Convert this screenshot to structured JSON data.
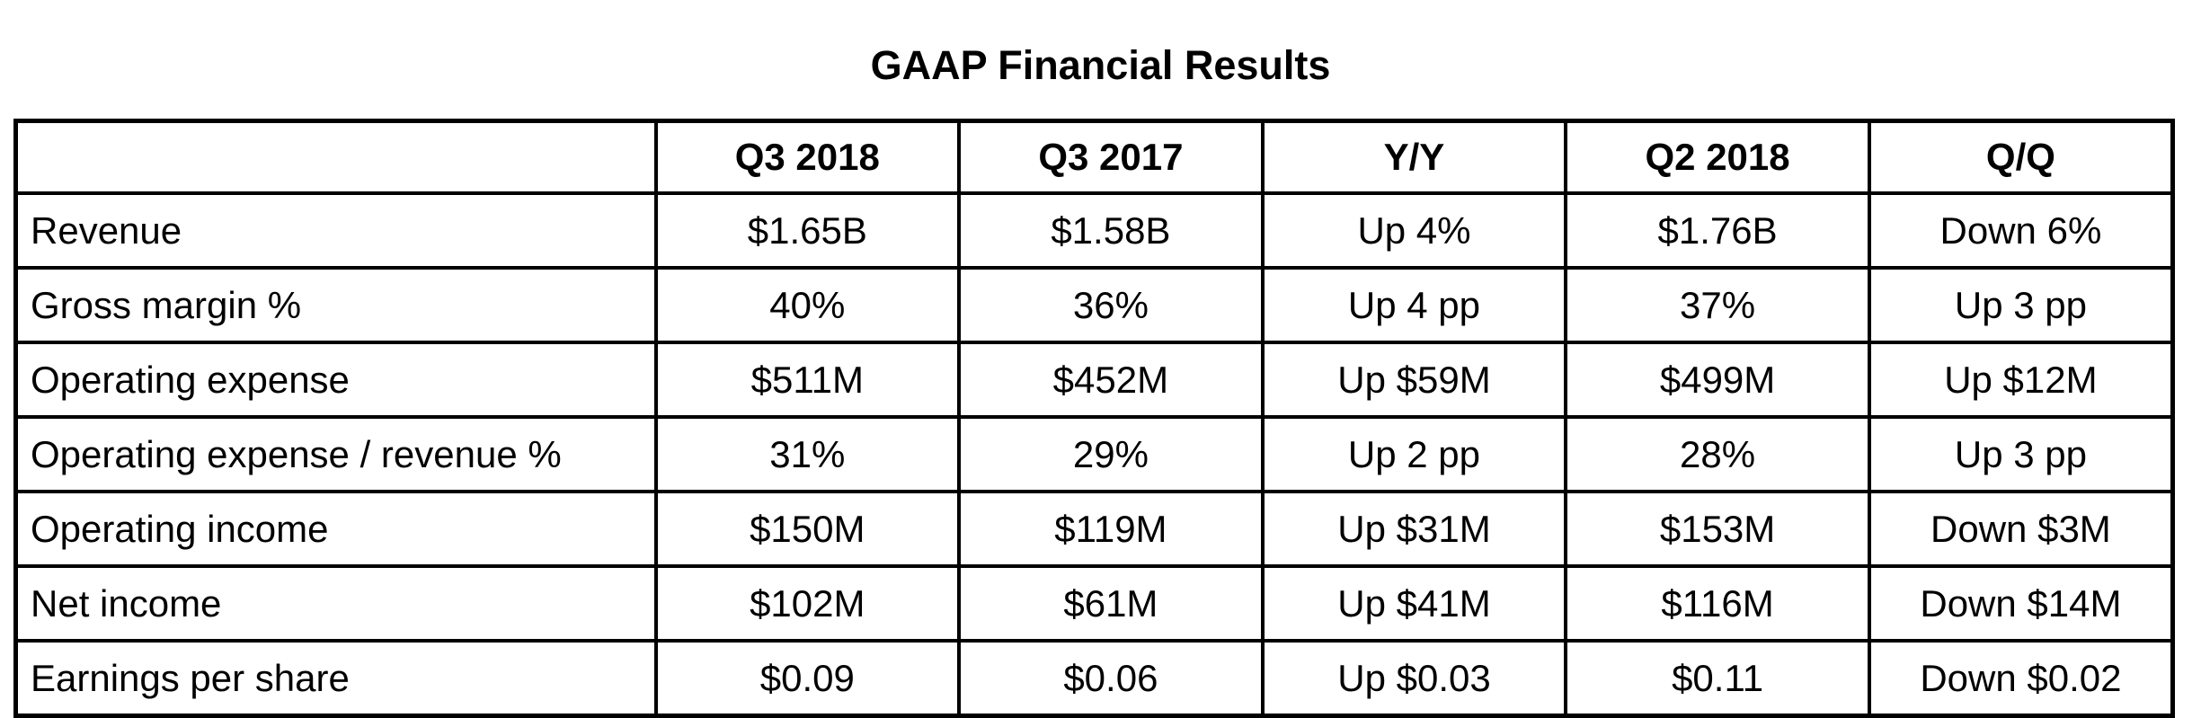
{
  "title": "GAAP Financial Results",
  "columns": [
    "",
    "Q3 2018",
    "Q3 2017",
    "Y/Y",
    "Q2 2018",
    "Q/Q"
  ],
  "rows": [
    {
      "metric": "Revenue",
      "cells": [
        "$1.65B",
        "$1.58B",
        "Up 4%",
        "$1.76B",
        "Down 6%"
      ]
    },
    {
      "metric": "Gross margin %",
      "cells": [
        "40%",
        "36%",
        "Up 4 pp",
        "37%",
        "Up 3 pp"
      ]
    },
    {
      "metric": "Operating expense",
      "cells": [
        "$511M",
        "$452M",
        "Up $59M",
        "$499M",
        "Up $12M"
      ]
    },
    {
      "metric": "Operating expense / revenue %",
      "cells": [
        "31%",
        "29%",
        "Up 2 pp",
        "28%",
        "Up 3 pp"
      ]
    },
    {
      "metric": "Operating income",
      "cells": [
        "$150M",
        "$119M",
        "Up $31M",
        "$153M",
        "Down $3M"
      ]
    },
    {
      "metric": "Net income",
      "cells": [
        "$102M",
        "$61M",
        "Up $41M",
        "$116M",
        "Down $14M"
      ]
    },
    {
      "metric": "Earnings per share",
      "cells": [
        "$0.09",
        "$0.06",
        "Up $0.03",
        "$0.11",
        "Down $0.02"
      ]
    }
  ]
}
